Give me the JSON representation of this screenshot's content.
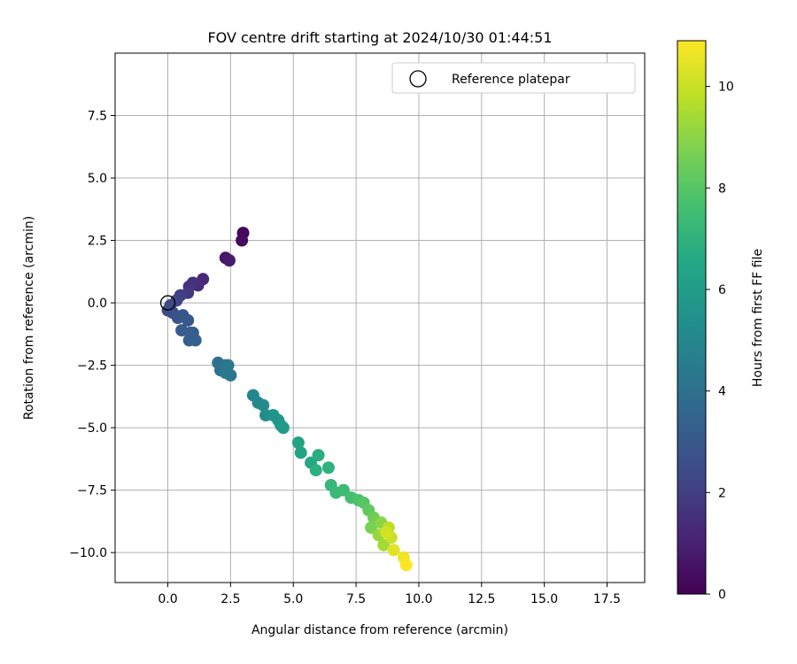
{
  "chart_data": {
    "type": "scatter",
    "title": "FOV centre drift starting at 2024/10/30 01:44:51",
    "xlabel": "Angular distance from reference (arcmin)",
    "ylabel": "Rotation from reference (arcmin)",
    "xlim": [
      -2.1,
      19.0
    ],
    "ylim": [
      -11.2,
      10.0
    ],
    "xticks": [
      0.0,
      2.5,
      5.0,
      7.5,
      10.0,
      12.5,
      15.0,
      17.5
    ],
    "xtick_labels": [
      "0.0",
      "2.5",
      "5.0",
      "7.5",
      "10.0",
      "12.5",
      "15.0",
      "17.5"
    ],
    "yticks": [
      7.5,
      5.0,
      2.5,
      0.0,
      -2.5,
      -5.0,
      -7.5,
      -10.0
    ],
    "ytick_labels": [
      "7.5",
      "5.0",
      "2.5",
      "0.0",
      "−2.5",
      "−5.0",
      "−7.5",
      "−10.0"
    ],
    "grid": true,
    "legend": {
      "position": "top-right",
      "label": "Reference platepar"
    },
    "reference_point": {
      "x": 0.0,
      "y": 0.0
    },
    "colorbar": {
      "label": "Hours from first FF file",
      "range": [
        0,
        10.9
      ],
      "ticks": [
        0,
        2,
        4,
        6,
        8,
        10
      ],
      "tick_labels": [
        "0",
        "2",
        "4",
        "6",
        "8",
        "10"
      ],
      "colormap": "viridis"
    },
    "series": [
      {
        "name": "",
        "points": [
          {
            "x": 3.0,
            "y": 2.8,
            "c": 0.2
          },
          {
            "x": 2.95,
            "y": 2.5,
            "c": 0.3
          },
          {
            "x": 2.3,
            "y": 1.8,
            "c": 0.7
          },
          {
            "x": 2.45,
            "y": 1.7,
            "c": 0.8
          },
          {
            "x": 1.4,
            "y": 0.95,
            "c": 1.3
          },
          {
            "x": 1.2,
            "y": 0.7,
            "c": 1.4
          },
          {
            "x": 1.0,
            "y": 0.8,
            "c": 1.5
          },
          {
            "x": 0.85,
            "y": 0.65,
            "c": 1.6
          },
          {
            "x": 0.8,
            "y": 0.4,
            "c": 1.8
          },
          {
            "x": 0.5,
            "y": 0.3,
            "c": 2.0
          },
          {
            "x": 0.35,
            "y": 0.1,
            "c": 2.2
          },
          {
            "x": 0.1,
            "y": -0.1,
            "c": 2.4
          },
          {
            "x": 0.0,
            "y": -0.3,
            "c": 2.5
          },
          {
            "x": 0.2,
            "y": -0.4,
            "c": 2.6
          },
          {
            "x": 0.4,
            "y": -0.6,
            "c": 2.8
          },
          {
            "x": 0.6,
            "y": -0.5,
            "c": 2.9
          },
          {
            "x": 0.8,
            "y": -0.7,
            "c": 3.0
          },
          {
            "x": 0.55,
            "y": -1.1,
            "c": 3.1
          },
          {
            "x": 0.9,
            "y": -1.2,
            "c": 3.2
          },
          {
            "x": 0.85,
            "y": -1.5,
            "c": 3.3
          },
          {
            "x": 1.1,
            "y": -1.5,
            "c": 3.4
          },
          {
            "x": 1.0,
            "y": -1.2,
            "c": 3.3
          },
          {
            "x": 2.0,
            "y": -2.4,
            "c": 4.0
          },
          {
            "x": 2.1,
            "y": -2.7,
            "c": 4.1
          },
          {
            "x": 2.3,
            "y": -2.5,
            "c": 4.2
          },
          {
            "x": 2.5,
            "y": -2.9,
            "c": 4.3
          },
          {
            "x": 2.3,
            "y": -2.8,
            "c": 4.4
          },
          {
            "x": 2.4,
            "y": -2.5,
            "c": 4.3
          },
          {
            "x": 3.4,
            "y": -3.7,
            "c": 5.0
          },
          {
            "x": 3.6,
            "y": -4.0,
            "c": 5.1
          },
          {
            "x": 3.8,
            "y": -4.1,
            "c": 5.2
          },
          {
            "x": 3.9,
            "y": -4.5,
            "c": 5.3
          },
          {
            "x": 4.2,
            "y": -4.5,
            "c": 5.5
          },
          {
            "x": 4.4,
            "y": -4.7,
            "c": 5.6
          },
          {
            "x": 4.5,
            "y": -4.9,
            "c": 5.8
          },
          {
            "x": 4.6,
            "y": -5.0,
            "c": 5.9
          },
          {
            "x": 5.2,
            "y": -5.6,
            "c": 6.3
          },
          {
            "x": 5.3,
            "y": -6.0,
            "c": 6.4
          },
          {
            "x": 5.7,
            "y": -6.4,
            "c": 6.6
          },
          {
            "x": 6.0,
            "y": -6.1,
            "c": 6.8
          },
          {
            "x": 5.9,
            "y": -6.7,
            "c": 6.9
          },
          {
            "x": 6.4,
            "y": -6.6,
            "c": 7.0
          },
          {
            "x": 6.5,
            "y": -7.3,
            "c": 7.2
          },
          {
            "x": 6.7,
            "y": -7.6,
            "c": 7.3
          },
          {
            "x": 7.0,
            "y": -7.5,
            "c": 7.4
          },
          {
            "x": 7.3,
            "y": -7.8,
            "c": 7.6
          },
          {
            "x": 7.6,
            "y": -7.9,
            "c": 7.8
          },
          {
            "x": 7.8,
            "y": -8.0,
            "c": 8.0
          },
          {
            "x": 8.0,
            "y": -8.3,
            "c": 8.2
          },
          {
            "x": 8.2,
            "y": -8.6,
            "c": 8.5
          },
          {
            "x": 8.1,
            "y": -9.0,
            "c": 8.7
          },
          {
            "x": 8.5,
            "y": -8.8,
            "c": 9.0
          },
          {
            "x": 8.4,
            "y": -9.3,
            "c": 9.2
          },
          {
            "x": 8.6,
            "y": -9.7,
            "c": 9.4
          },
          {
            "x": 8.8,
            "y": -9.0,
            "c": 9.8
          },
          {
            "x": 8.9,
            "y": -9.4,
            "c": 10.0
          },
          {
            "x": 8.7,
            "y": -9.2,
            "c": 10.2
          },
          {
            "x": 9.0,
            "y": -9.9,
            "c": 10.4
          },
          {
            "x": 9.4,
            "y": -10.2,
            "c": 10.7
          },
          {
            "x": 9.5,
            "y": -10.5,
            "c": 10.9
          }
        ]
      }
    ]
  }
}
